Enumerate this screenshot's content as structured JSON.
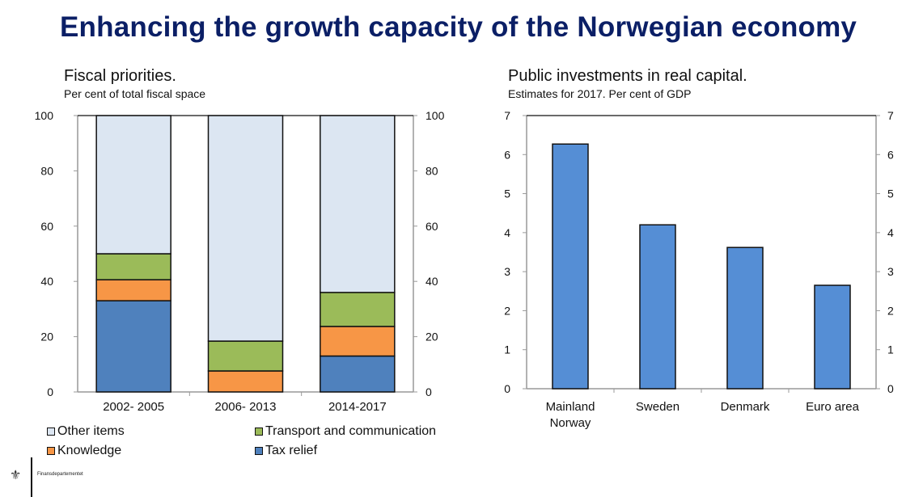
{
  "title": "Enhancing the growth capacity of the Norwegian economy",
  "footer": {
    "logo_icon": "norwegian-lion-crest-icon",
    "ministry": "Finansdepartementet"
  },
  "chart_data": [
    {
      "type": "bar",
      "stacked": true,
      "title": "Fiscal priorities.",
      "subtitle": "Per cent of total fiscal space",
      "categories": [
        "2002- 2005",
        "2006- 2013",
        "2014-2017"
      ],
      "series": [
        {
          "name": "Tax relief",
          "color": "#4f81bd",
          "values": [
            33,
            0,
            13
          ]
        },
        {
          "name": "Knowledge",
          "color": "#f79646",
          "values": [
            7.6,
            7.6,
            10.7
          ]
        },
        {
          "name": "Transport and communication",
          "color": "#9bbb59",
          "values": [
            9.4,
            10.8,
            12.3
          ]
        },
        {
          "name": "Other items",
          "color": "#dce6f2",
          "values": [
            50,
            81.6,
            64
          ]
        }
      ],
      "ylim": [
        0,
        100
      ],
      "yticks": [
        "0",
        "20",
        "40",
        "60",
        "80",
        "100"
      ],
      "legend": [
        {
          "label": "Other items",
          "color": "#dce6f2"
        },
        {
          "label": "Transport and communication",
          "color": "#9bbb59"
        },
        {
          "label": "Knowledge",
          "color": "#f79646"
        },
        {
          "label": "Tax relief",
          "color": "#4f81bd"
        }
      ],
      "legend_position": "bottom",
      "grid": false
    },
    {
      "type": "bar",
      "title": "Public investments in real capital.",
      "subtitle": "Estimates for 2017. Per cent of GDP",
      "categories": [
        "Mainland Norway",
        "Sweden",
        "Denmark",
        "Euro area"
      ],
      "category_lines": [
        [
          "Mainland",
          "Norway"
        ],
        [
          "Sweden"
        ],
        [
          "Denmark"
        ],
        [
          "Euro area"
        ]
      ],
      "values": [
        6.27,
        4.2,
        3.62,
        2.65
      ],
      "color": "#558ed5",
      "ylim": [
        0,
        7
      ],
      "yticks": [
        "0",
        "1",
        "2",
        "3",
        "4",
        "5",
        "6",
        "7"
      ],
      "grid": false
    }
  ]
}
